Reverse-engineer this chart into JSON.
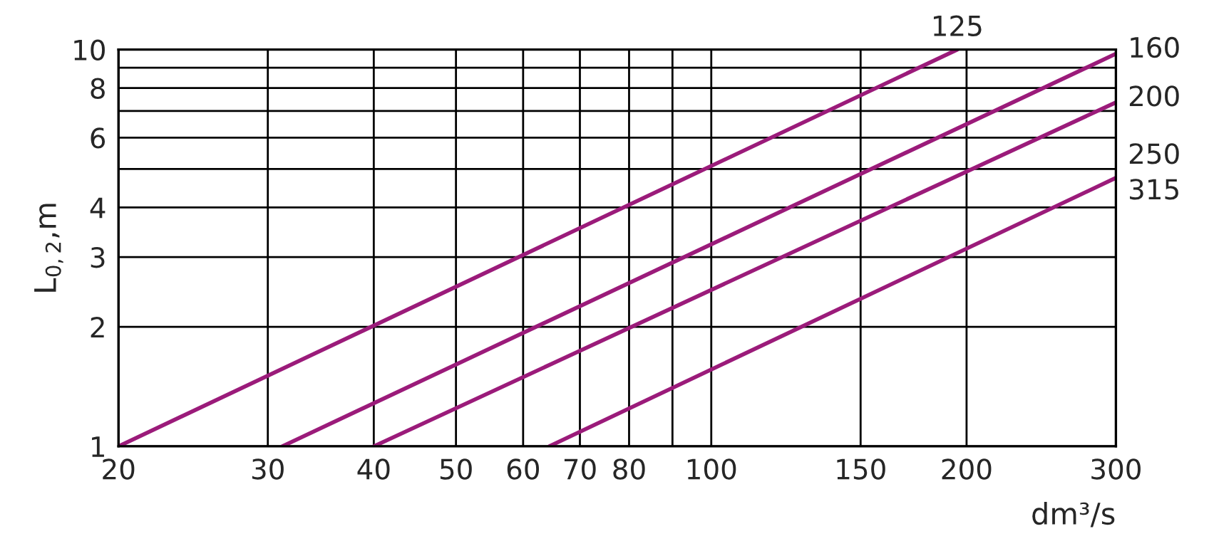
{
  "chart_data": {
    "type": "line",
    "log": "xy",
    "ylabel": "L$_{0,2}$,m",
    "xlabel": "dm³/s",
    "xlim": [
      20,
      300
    ],
    "ylim": [
      1,
      10
    ],
    "xticks": [
      20,
      30,
      40,
      50,
      60,
      70,
      80,
      {
        "value": 90,
        "label": null
      },
      100,
      150,
      200,
      300
    ],
    "yticks": [
      1,
      2,
      3,
      4,
      {
        "value": 5,
        "label": null
      },
      6,
      {
        "value": 7,
        "label": null
      },
      8,
      {
        "value": 9,
        "label": null
      },
      10
    ],
    "grid": true,
    "marker": "none",
    "line_style": "solid",
    "series": [
      {
        "color": "#9b1b7a",
        "x": [
          20,
          195
        ],
        "values": [
          1,
          10
        ]
      },
      {
        "color": "#9b1b7a",
        "x": [
          31.2,
          300
        ],
        "values": [
          1,
          9.76
        ]
      },
      {
        "color": "#9b1b7a",
        "x": [
          40,
          300
        ],
        "values": [
          1,
          7.36
        ]
      },
      {
        "color": "#9b1b7a",
        "x": [
          64.4,
          300
        ],
        "values": [
          1,
          4.75
        ]
      }
    ],
    "annotations": [
      "125",
      "160",
      "200",
      "250",
      "315"
    ]
  }
}
